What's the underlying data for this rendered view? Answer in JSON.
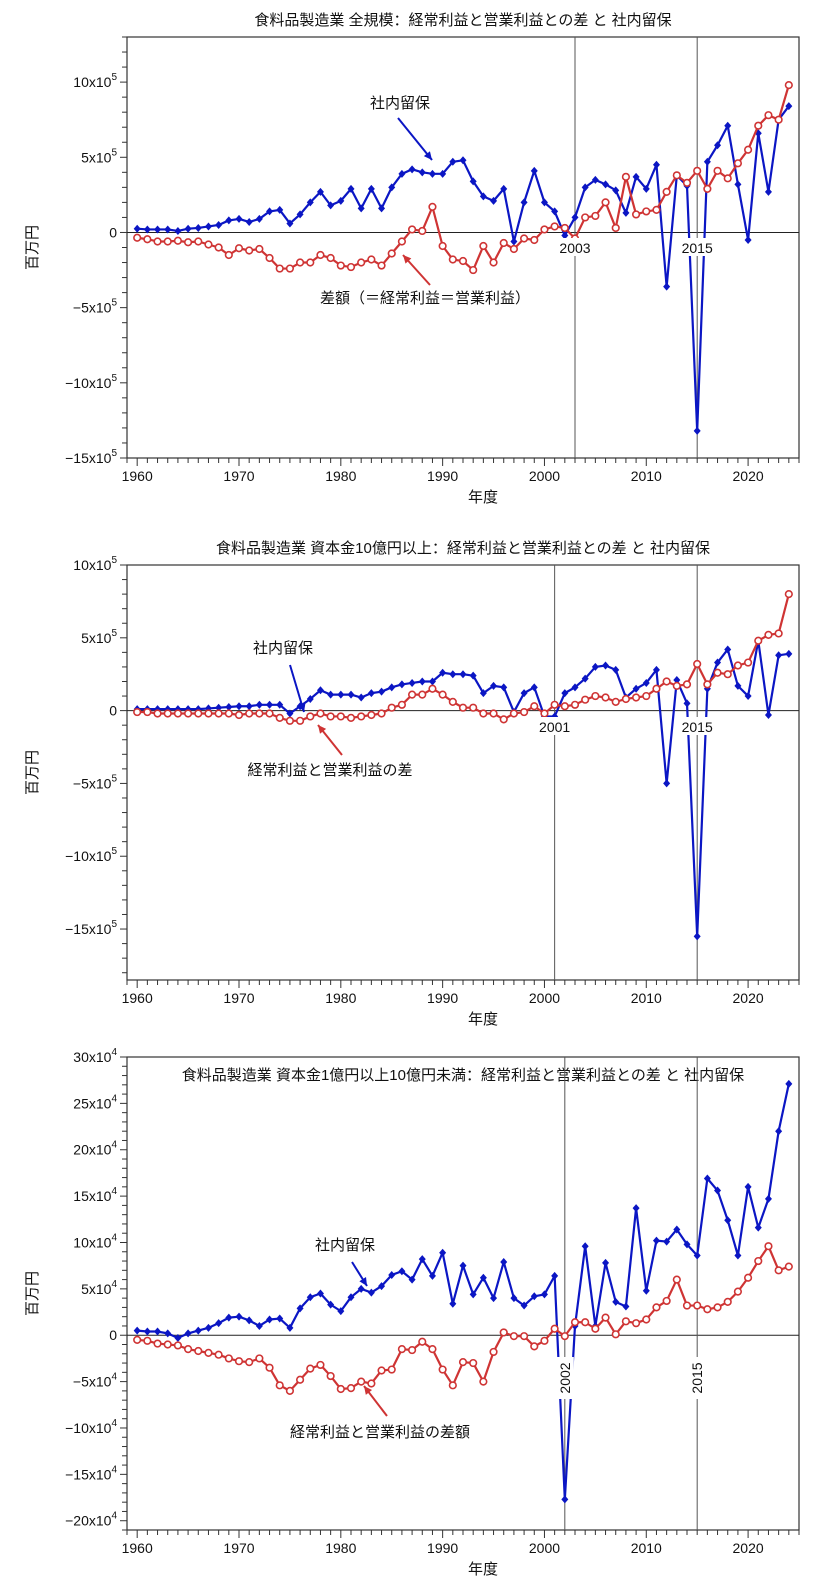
{
  "chart_data": [
    {
      "type": "line",
      "title": "食料品製造業 全規模：経常利益と営業利益との差 と 社内留保",
      "xlabel": "年度",
      "ylabel": "百万円",
      "unit_exponent": 5,
      "xlim": [
        1959,
        2025
      ],
      "ylim": [
        -15,
        13
      ],
      "xticks": [
        1960,
        1970,
        1980,
        1990,
        2000,
        2010,
        2020
      ],
      "yticks": [
        10,
        5,
        0,
        -5,
        -10,
        -15
      ],
      "grid": false,
      "vlines": [
        2003,
        2015
      ],
      "x_start": 1960,
      "series": [
        {
          "name": "社内留保",
          "color": "#0b16c4",
          "marker": "diamond",
          "values": [
            0.25,
            0.2,
            0.2,
            0.2,
            0.1,
            0.25,
            0.3,
            0.4,
            0.5,
            0.8,
            0.9,
            0.7,
            0.9,
            1.4,
            1.5,
            0.6,
            1.2,
            2.0,
            2.7,
            1.8,
            2.1,
            2.9,
            1.6,
            2.9,
            1.6,
            3.0,
            3.9,
            4.2,
            4.0,
            3.9,
            3.9,
            4.7,
            4.8,
            3.4,
            2.4,
            2.1,
            2.9,
            -0.6,
            2.0,
            4.1,
            2.0,
            1.4,
            -0.2,
            1.0,
            3.0,
            3.5,
            3.2,
            2.8,
            1.3,
            3.7,
            2.9,
            4.5,
            -3.6,
            3.8,
            3.1,
            -13.2,
            4.7,
            5.8,
            7.1,
            3.2,
            -0.5,
            6.6,
            2.7,
            7.5,
            8.4
          ]
        },
        {
          "name": "差額（＝経常利益＝営業利益）",
          "color": "#cf3434",
          "marker": "circle",
          "values": [
            -0.35,
            -0.45,
            -0.6,
            -0.6,
            -0.55,
            -0.65,
            -0.6,
            -0.8,
            -1.0,
            -1.5,
            -1.05,
            -1.2,
            -1.1,
            -1.7,
            -2.4,
            -2.4,
            -2.0,
            -2.0,
            -1.5,
            -1.7,
            -2.2,
            -2.3,
            -2.0,
            -1.8,
            -2.2,
            -1.4,
            -0.6,
            0.2,
            0.1,
            1.7,
            -0.9,
            -1.8,
            -1.9,
            -2.5,
            -0.9,
            -2.0,
            -0.7,
            -1.1,
            -0.4,
            -0.5,
            0.2,
            0.4,
            0.3,
            -0.4,
            1.0,
            1.1,
            2.0,
            0.3,
            3.7,
            1.2,
            1.4,
            1.5,
            2.7,
            3.8,
            3.3,
            4.1,
            2.9,
            4.1,
            3.6,
            4.6,
            5.5,
            7.1,
            7.8,
            7.5,
            9.8
          ]
        }
      ],
      "annotations": [
        "社内留保",
        "差額（＝経常利益＝営業利益）"
      ]
    },
    {
      "type": "line",
      "title": "食料品製造業 資本金10億円以上：経常利益と営業利益との差 と 社内留保",
      "xlabel": "年度",
      "ylabel": "百万円",
      "unit_exponent": 5,
      "xlim": [
        1959,
        2025
      ],
      "ylim": [
        -18.5,
        10
      ],
      "xticks": [
        1960,
        1970,
        1980,
        1990,
        2000,
        2010,
        2020
      ],
      "yticks": [
        10,
        5,
        0,
        -5,
        -10,
        -15
      ],
      "grid": false,
      "vlines": [
        2001,
        2015
      ],
      "x_start": 1960,
      "series": [
        {
          "name": "社内留保",
          "color": "#0b16c4",
          "marker": "diamond",
          "values": [
            0.1,
            0.1,
            0.1,
            0.1,
            0.1,
            0.1,
            0.1,
            0.15,
            0.2,
            0.25,
            0.3,
            0.3,
            0.4,
            0.4,
            0.4,
            -0.2,
            0.3,
            0.8,
            1.4,
            1.1,
            1.1,
            1.1,
            0.9,
            1.2,
            1.3,
            1.6,
            1.8,
            1.9,
            2.0,
            2.0,
            2.6,
            2.5,
            2.5,
            2.4,
            1.2,
            1.7,
            1.6,
            -0.1,
            1.2,
            1.6,
            -0.4,
            -0.4,
            1.2,
            1.6,
            2.2,
            3.0,
            3.1,
            2.8,
            0.9,
            1.5,
            1.9,
            2.8,
            -5.0,
            2.1,
            0.5,
            -15.5,
            1.5,
            3.3,
            4.2,
            1.7,
            1.0,
            4.8,
            -0.3,
            3.8,
            3.9
          ]
        },
        {
          "name": "経常利益と営業利益の差",
          "color": "#cf3434",
          "marker": "circle",
          "values": [
            -0.1,
            -0.1,
            -0.2,
            -0.2,
            -0.2,
            -0.2,
            -0.2,
            -0.2,
            -0.2,
            -0.2,
            -0.3,
            -0.2,
            -0.2,
            -0.2,
            -0.5,
            -0.7,
            -0.7,
            -0.4,
            -0.2,
            -0.4,
            -0.4,
            -0.5,
            -0.4,
            -0.3,
            -0.2,
            0.2,
            0.4,
            1.1,
            1.1,
            1.5,
            1.1,
            0.6,
            0.2,
            0.2,
            -0.2,
            -0.2,
            -0.6,
            -0.2,
            -0.1,
            0.3,
            -0.2,
            0.4,
            0.3,
            0.4,
            0.75,
            1.0,
            0.9,
            0.6,
            0.8,
            0.9,
            1.0,
            1.5,
            2.0,
            1.7,
            1.8,
            3.2,
            1.8,
            2.6,
            2.5,
            3.1,
            3.3,
            4.8,
            5.2,
            5.3,
            8.0
          ]
        }
      ],
      "annotations": [
        "社内留保",
        "経常利益と営業利益の差"
      ]
    },
    {
      "type": "line",
      "title": "食料品製造業 資本金1億円以上10億円未満：経常利益と営業利益との差 と 社内留保",
      "xlabel": "年度",
      "ylabel": "百万円",
      "unit_exponent": 4,
      "xlim": [
        1959,
        2025
      ],
      "ylim": [
        -21,
        30
      ],
      "xticks": [
        1960,
        1970,
        1980,
        1990,
        2000,
        2010,
        2020
      ],
      "yticks": [
        30,
        25,
        20,
        15,
        10,
        5,
        0,
        -5,
        -10,
        -15,
        -20
      ],
      "grid": false,
      "vlines": [
        2002,
        2015
      ],
      "x_start": 1960,
      "series": [
        {
          "name": "社内留保",
          "color": "#0b16c4",
          "marker": "diamond",
          "values": [
            0.5,
            0.4,
            0.4,
            0.2,
            -0.3,
            0.2,
            0.5,
            0.8,
            1.3,
            1.9,
            2.0,
            1.6,
            1.0,
            1.7,
            1.8,
            0.8,
            2.9,
            4.1,
            4.5,
            3.3,
            2.6,
            4.1,
            5.0,
            4.6,
            5.3,
            6.5,
            6.9,
            6.0,
            8.2,
            6.4,
            8.9,
            3.4,
            7.5,
            4.4,
            6.2,
            4.0,
            7.9,
            4.0,
            3.2,
            4.2,
            4.4,
            6.4,
            -17.7,
            1.0,
            9.6,
            1.0,
            7.8,
            3.6,
            3.1,
            13.7,
            4.8,
            10.2,
            10.1,
            11.4,
            9.8,
            8.6,
            16.9,
            15.6,
            12.4,
            8.6,
            16.0,
            11.6,
            14.7,
            22.0,
            27.1
          ]
        },
        {
          "name": "経常利益と営業利益の差額",
          "color": "#cf3434",
          "marker": "circle",
          "values": [
            -0.5,
            -0.6,
            -0.9,
            -1.0,
            -1.1,
            -1.5,
            -1.7,
            -1.9,
            -2.1,
            -2.5,
            -2.8,
            -2.9,
            -2.5,
            -3.5,
            -5.4,
            -6.0,
            -4.8,
            -3.6,
            -3.2,
            -4.4,
            -5.8,
            -5.7,
            -5.0,
            -5.2,
            -3.8,
            -3.7,
            -1.5,
            -1.6,
            -0.7,
            -1.5,
            -3.7,
            -5.4,
            -2.9,
            -3.0,
            -5.0,
            -1.8,
            0.3,
            -0.1,
            -0.1,
            -1.2,
            -0.6,
            0.7,
            -0.1,
            1.4,
            1.4,
            0.7,
            1.9,
            0.1,
            1.5,
            1.3,
            1.7,
            3.0,
            3.7,
            6.0,
            3.2,
            3.2,
            2.8,
            3.0,
            3.6,
            4.7,
            6.2,
            8.0,
            9.6,
            7.0,
            7.4
          ]
        }
      ],
      "annotations": [
        "社内留保",
        "経常利益と営業利益の差額"
      ]
    }
  ]
}
